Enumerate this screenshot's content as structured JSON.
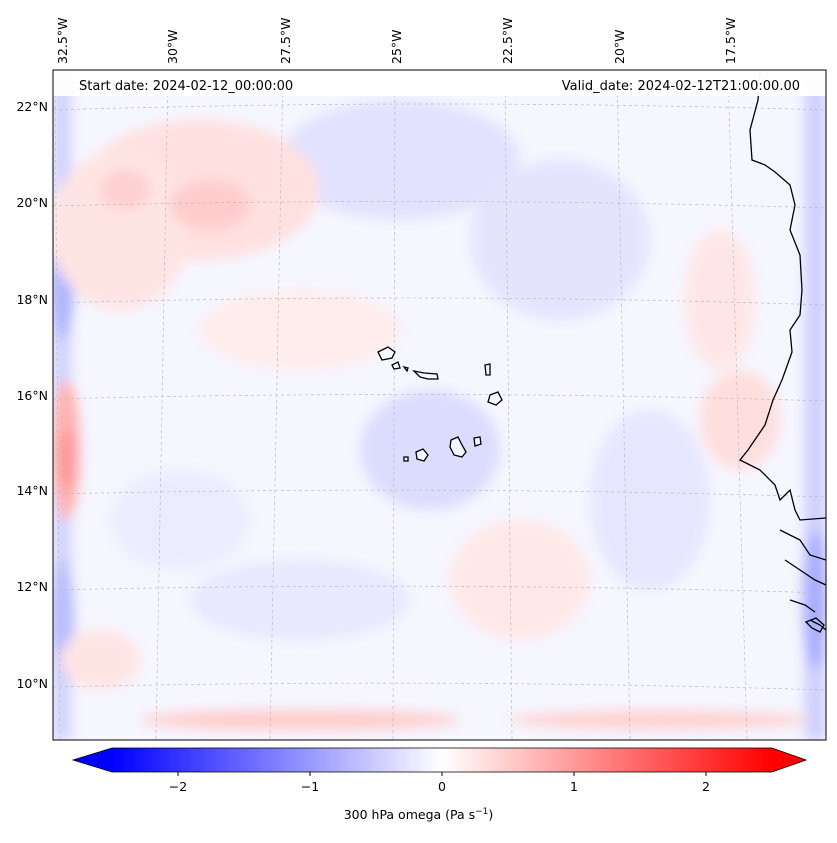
{
  "header": {
    "start_date": "Start date: 2024-02-12_00:00:00",
    "valid_date": "Valid_date: 2024-02-12T21:00:00.00"
  },
  "lon_labels": [
    "32.5°W",
    "30°W",
    "27.5°W",
    "25°W",
    "22.5°W",
    "20°W",
    "17.5°W"
  ],
  "lat_labels": [
    "22°N",
    "20°N",
    "18°N",
    "16°N",
    "14°N",
    "12°N",
    "10°N"
  ],
  "colorbar": {
    "label_prefix": "300 hPa omega (Pa s",
    "label_exp": "−1",
    "label_suffix": ")",
    "ticks": [
      "−2",
      "−1",
      "0",
      "1",
      "2"
    ],
    "tick_values": [
      -2,
      -1,
      0,
      1,
      2
    ],
    "vmin": -2.5,
    "vmax": 2.5,
    "cmap": "bwr",
    "extend": "both",
    "low_color": "#0000ff",
    "mid_color": "#ffffff",
    "high_color": "#ff0000"
  },
  "map": {
    "variable": "300 hPa omega",
    "projection": "Lambert conformal",
    "lon_range_deg": [
      -33,
      -16
    ],
    "lat_range_deg": [
      9,
      22.5
    ],
    "coastline_color": "#000000",
    "grid_color": "#bbbbbb"
  }
}
